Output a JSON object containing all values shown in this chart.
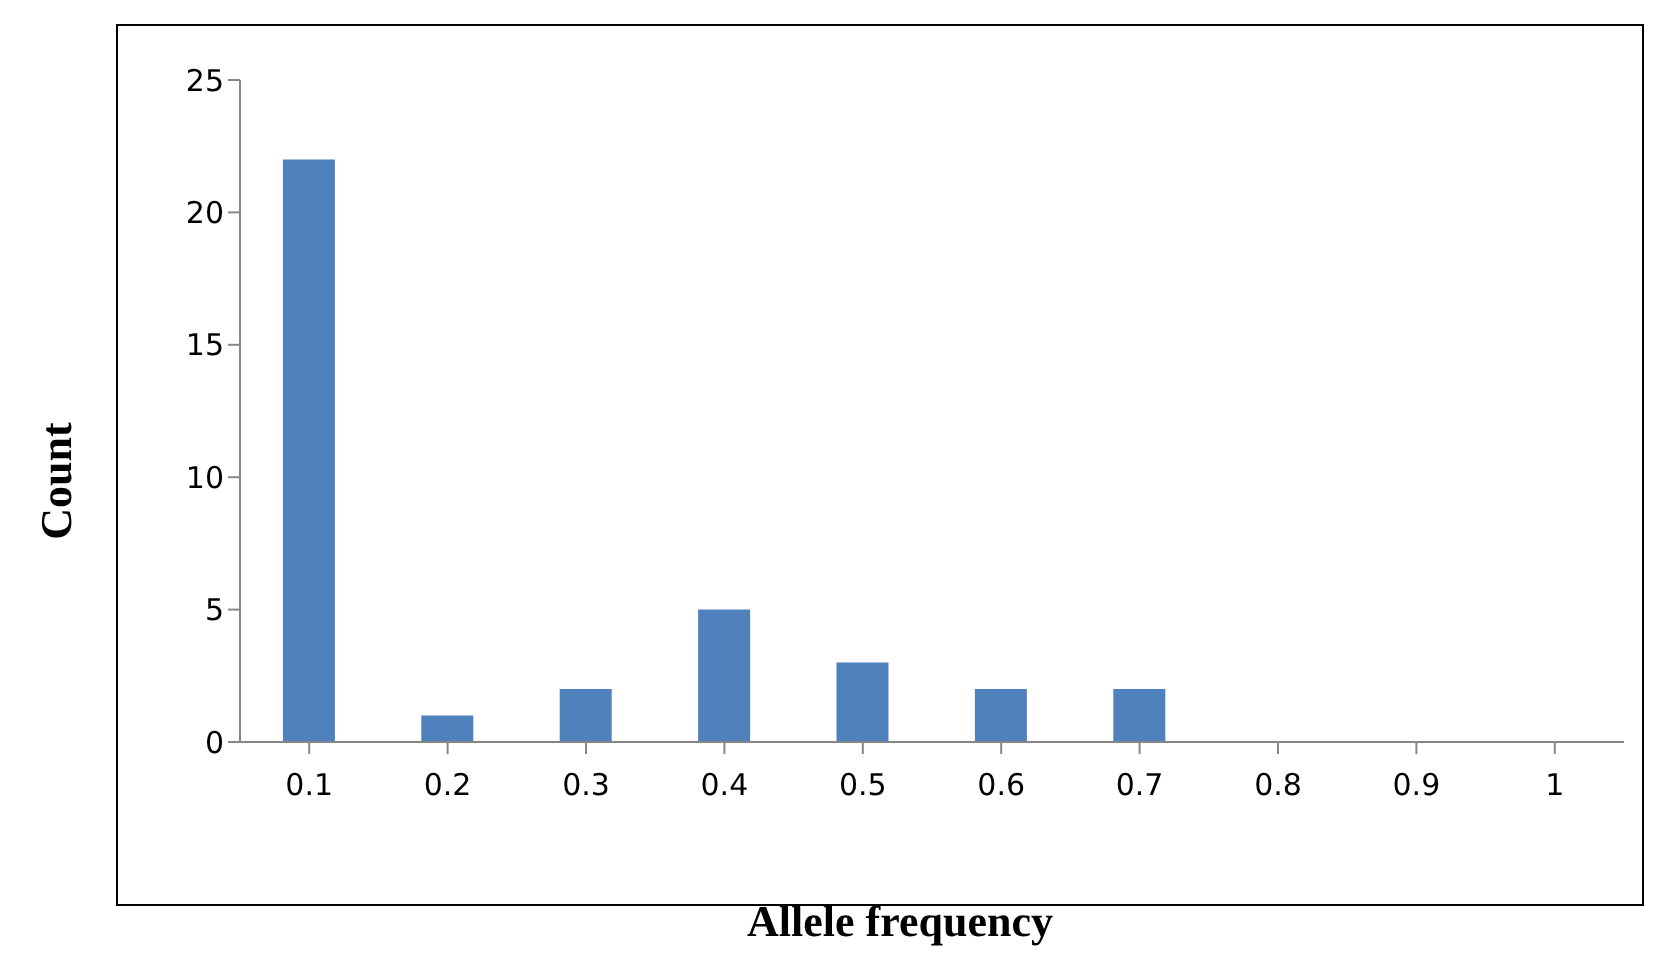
{
  "chart_data": {
    "type": "bar",
    "xlabel": "Allele frequency",
    "ylabel": "Count",
    "categories": [
      "0.1",
      "0.2",
      "0.3",
      "0.4",
      "0.5",
      "0.6",
      "0.7",
      "0.8",
      "0.9",
      "1"
    ],
    "values": [
      22,
      1,
      2,
      5,
      3,
      2,
      2,
      0,
      0,
      0
    ],
    "color": "#4f81bd",
    "ylim": [
      0,
      25
    ],
    "yticks": [
      0,
      5,
      10,
      15,
      20,
      25
    ],
    "grid": false,
    "legend": false
  }
}
